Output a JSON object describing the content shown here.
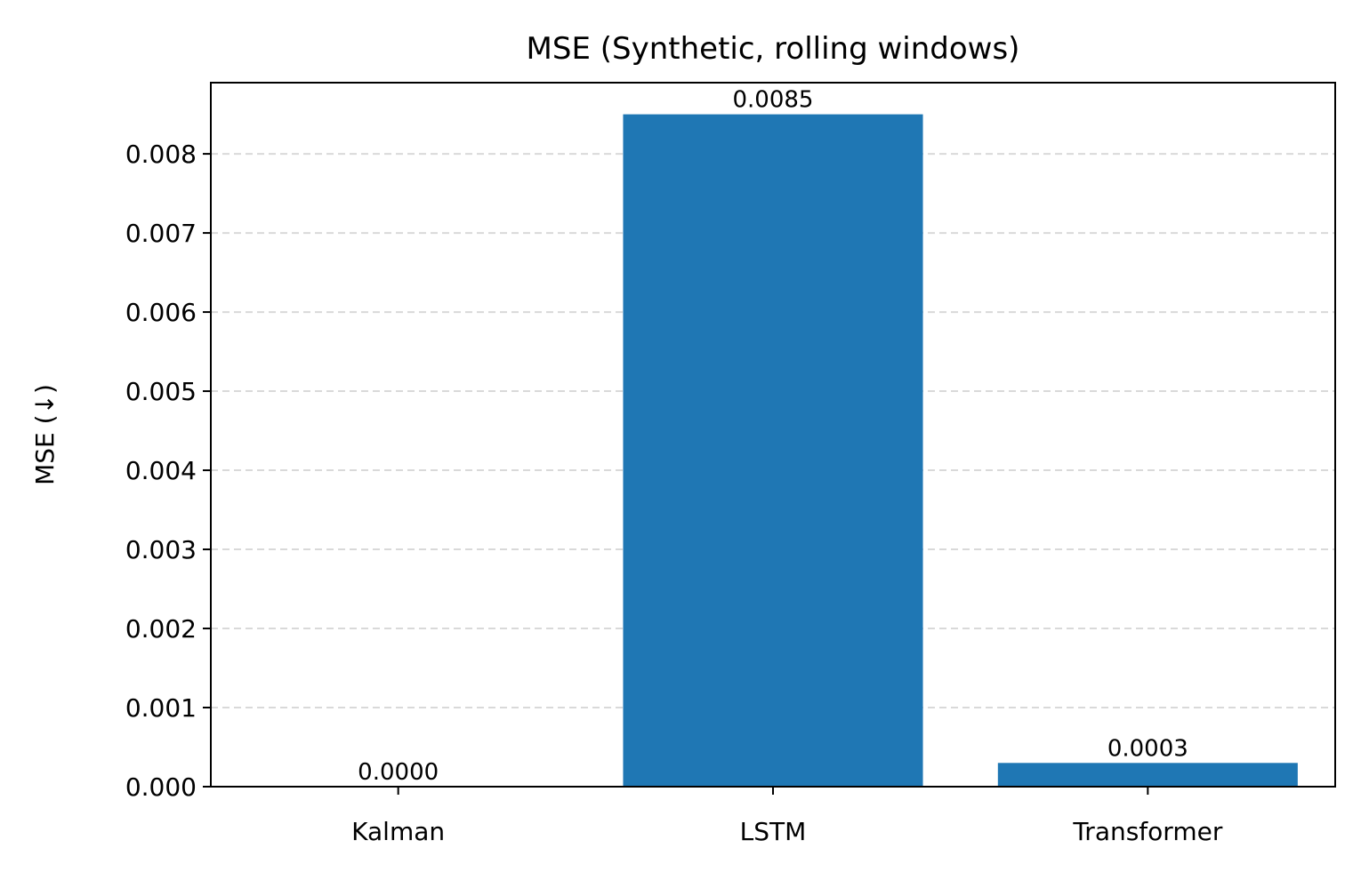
{
  "chart_data": {
    "type": "bar",
    "title": "MSE (Synthetic, rolling windows)",
    "xlabel": "",
    "ylabel": "MSE (↓)",
    "categories": [
      "Kalman",
      "LSTM",
      "Transformer"
    ],
    "values": [
      0.0,
      0.0085,
      0.0003
    ],
    "value_labels": [
      "0.0000",
      "0.0085",
      "0.0003"
    ],
    "ylim": [
      0,
      0.0089
    ],
    "yticks": [
      0,
      0.001,
      0.002,
      0.003,
      0.004,
      0.005,
      0.006,
      0.007,
      0.008
    ],
    "ytick_labels": [
      "0.000",
      "0.001",
      "0.002",
      "0.003",
      "0.004",
      "0.005",
      "0.006",
      "0.007",
      "0.008"
    ],
    "grid": "y-dashed",
    "legend": "none",
    "colors": {
      "bar": "#1f77b4",
      "grid": "#d9d9d9",
      "axis": "#000000"
    }
  }
}
